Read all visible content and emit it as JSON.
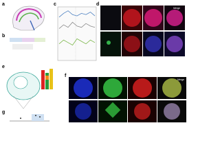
{
  "panels": {
    "a": {
      "label": "a"
    },
    "b": {
      "label": "b"
    },
    "c": {
      "label": "c",
      "ylim": [
        0,
        4
      ],
      "series": [
        {
          "color": "#4a7fc0",
          "values": [
            3.3,
            3.6,
            3.8,
            3.5,
            3.4,
            3.6,
            3.5,
            3.7,
            3.4
          ]
        },
        {
          "color": "#8a8a8a",
          "values": [
            2.4,
            2.7,
            2.5,
            2.9,
            2.6,
            2.5,
            2.8,
            2.6,
            2.5
          ]
        },
        {
          "color": "#7ab648",
          "values": [
            1.2,
            1.5,
            1.3,
            1.1,
            1.6,
            1.4,
            1.2,
            1.5,
            1.3
          ]
        }
      ]
    },
    "d": {
      "label": "d",
      "merge": "Merge"
    },
    "e": {
      "label": "e"
    },
    "f": {
      "label": "f",
      "merge": "Merge"
    },
    "g": {
      "label": "g"
    }
  }
}
